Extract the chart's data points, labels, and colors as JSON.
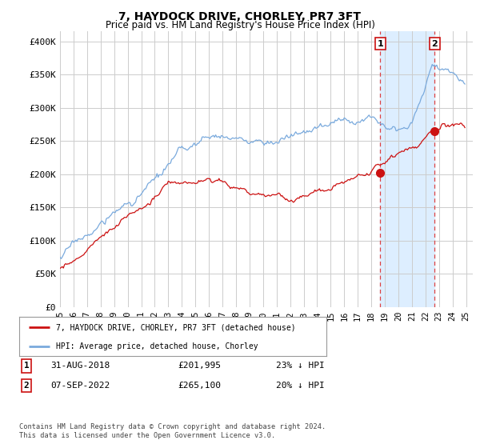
{
  "title": "7, HAYDOCK DRIVE, CHORLEY, PR7 3FT",
  "subtitle": "Price paid vs. HM Land Registry's House Price Index (HPI)",
  "ylabel_ticks": [
    "£0",
    "£50K",
    "£100K",
    "£150K",
    "£200K",
    "£250K",
    "£300K",
    "£350K",
    "£400K"
  ],
  "ytick_values": [
    0,
    50000,
    100000,
    150000,
    200000,
    250000,
    300000,
    350000,
    400000
  ],
  "ylim": [
    0,
    415000
  ],
  "xlim_start": 1995.0,
  "xlim_end": 2025.5,
  "hpi_color": "#7aaadd",
  "price_color": "#cc1111",
  "bg_color": "#ffffff",
  "grid_color": "#cccccc",
  "span_color": "#ddeeff",
  "annotation1": {
    "label": "1",
    "date": "31-AUG-2018",
    "price": "£201,995",
    "pct": "23% ↓ HPI"
  },
  "annotation2": {
    "label": "2",
    "date": "07-SEP-2022",
    "price": "£265,100",
    "pct": "20% ↓ HPI"
  },
  "legend_line1": "7, HAYDOCK DRIVE, CHORLEY, PR7 3FT (detached house)",
  "legend_line2": "HPI: Average price, detached house, Chorley",
  "footer": "Contains HM Land Registry data © Crown copyright and database right 2024.\nThis data is licensed under the Open Government Licence v3.0.",
  "sale1_x": 2018.67,
  "sale1_y": 201995,
  "sale2_x": 2022.68,
  "sale2_y": 265100
}
